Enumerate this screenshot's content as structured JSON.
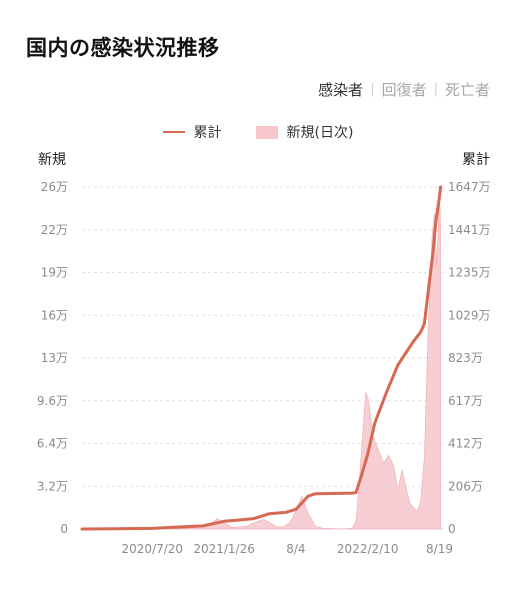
{
  "page": {
    "title": "国内の感染状況推移"
  },
  "tabs": [
    {
      "label": "感染者",
      "active": true
    },
    {
      "label": "回復者",
      "active": false
    },
    {
      "label": "死亡者",
      "active": false
    }
  ],
  "tab_separator": "|",
  "chart_data": {
    "type": "line+bar",
    "legend": [
      {
        "label": "累計",
        "type": "line",
        "color": "#d76852"
      },
      {
        "label": "新規(日次)",
        "type": "bar",
        "color": "#f6c6cb"
      }
    ],
    "left_axis": {
      "title": "新規",
      "ticks": [
        "0",
        "3.2万",
        "6.4万",
        "9.6万",
        "13万",
        "16万",
        "19万",
        "22万",
        "26万"
      ],
      "ylim": [
        0,
        260000
      ]
    },
    "right_axis": {
      "title": "累計",
      "ticks": [
        "0",
        "206万",
        "412万",
        "617万",
        "823万",
        "1029万",
        "1235万",
        "1441万",
        "1647万"
      ],
      "ylim": [
        0,
        16470000
      ]
    },
    "x_axis": {
      "ticks": [
        "2020/7/20",
        "2021/1/26",
        "8/4",
        "2022/2/10",
        "8/19"
      ],
      "tick_dates": [
        "2020-07-20",
        "2021-01-26",
        "2021-08-04",
        "2022-02-10",
        "2022-08-19"
      ],
      "range": [
        "2020-01-16",
        "2022-08-31"
      ]
    },
    "series": [
      {
        "name": "累計",
        "type": "line",
        "color": "#d76852",
        "points": [
          [
            "2020-01-16",
            0
          ],
          [
            "2020-04-15",
            10000
          ],
          [
            "2020-07-20",
            27000
          ],
          [
            "2020-09-01",
            70000
          ],
          [
            "2020-12-01",
            150000
          ],
          [
            "2021-01-26",
            370000
          ],
          [
            "2021-03-15",
            450000
          ],
          [
            "2021-04-15",
            500000
          ],
          [
            "2021-05-25",
            730000
          ],
          [
            "2021-07-10",
            810000
          ],
          [
            "2021-08-04",
            950000
          ],
          [
            "2021-08-20",
            1250000
          ],
          [
            "2021-09-05",
            1580000
          ],
          [
            "2021-09-25",
            1700000
          ],
          [
            "2021-12-31",
            1730000
          ],
          [
            "2022-01-10",
            1760000
          ],
          [
            "2022-01-25",
            2600000
          ],
          [
            "2022-02-10",
            3600000
          ],
          [
            "2022-03-01",
            5100000
          ],
          [
            "2022-04-01",
            6600000
          ],
          [
            "2022-05-01",
            7900000
          ],
          [
            "2022-06-10",
            9000000
          ],
          [
            "2022-07-01",
            9500000
          ],
          [
            "2022-07-10",
            9900000
          ],
          [
            "2022-07-20",
            11400000
          ],
          [
            "2022-08-01",
            13200000
          ],
          [
            "2022-08-10",
            14900000
          ],
          [
            "2022-08-19",
            16000000
          ],
          [
            "2022-08-22",
            16470000
          ]
        ]
      },
      {
        "name": "新規(日次)",
        "type": "area",
        "color": "#f6c6cb",
        "points": [
          [
            "2020-01-16",
            0
          ],
          [
            "2020-03-20",
            300
          ],
          [
            "2020-04-12",
            650
          ],
          [
            "2020-05-20",
            50
          ],
          [
            "2020-07-01",
            300
          ],
          [
            "2020-08-07",
            1600
          ],
          [
            "2020-09-15",
            450
          ],
          [
            "2020-11-01",
            800
          ],
          [
            "2020-12-15",
            3000
          ],
          [
            "2021-01-08",
            7900
          ],
          [
            "2021-02-15",
            1300
          ],
          [
            "2021-03-25",
            2000
          ],
          [
            "2021-04-20",
            5500
          ],
          [
            "2021-05-12",
            7200
          ],
          [
            "2021-06-15",
            1600
          ],
          [
            "2021-07-01",
            1700
          ],
          [
            "2021-07-20",
            5000
          ],
          [
            "2021-08-04",
            14000
          ],
          [
            "2021-08-20",
            25000
          ],
          [
            "2021-09-05",
            12000
          ],
          [
            "2021-09-25",
            2000
          ],
          [
            "2021-10-15",
            500
          ],
          [
            "2021-12-01",
            100
          ],
          [
            "2021-12-31",
            500
          ],
          [
            "2022-01-10",
            6000
          ],
          [
            "2022-01-20",
            40000
          ],
          [
            "2022-02-01",
            90000
          ],
          [
            "2022-02-05",
            104000
          ],
          [
            "2022-02-12",
            98000
          ],
          [
            "2022-02-25",
            70000
          ],
          [
            "2022-03-10",
            60000
          ],
          [
            "2022-03-25",
            50000
          ],
          [
            "2022-04-06",
            56000
          ],
          [
            "2022-04-20",
            48000
          ],
          [
            "2022-05-01",
            30000
          ],
          [
            "2022-05-12",
            45000
          ],
          [
            "2022-06-01",
            20000
          ],
          [
            "2022-06-20",
            13000
          ],
          [
            "2022-06-30",
            20000
          ],
          [
            "2022-07-10",
            55000
          ],
          [
            "2022-07-20",
            150000
          ],
          [
            "2022-07-30",
            220000
          ],
          [
            "2022-08-05",
            240000
          ],
          [
            "2022-08-12",
            200000
          ],
          [
            "2022-08-19",
            255000
          ],
          [
            "2022-08-22",
            230000
          ]
        ]
      }
    ],
    "grid": "horizontal-dashed"
  }
}
